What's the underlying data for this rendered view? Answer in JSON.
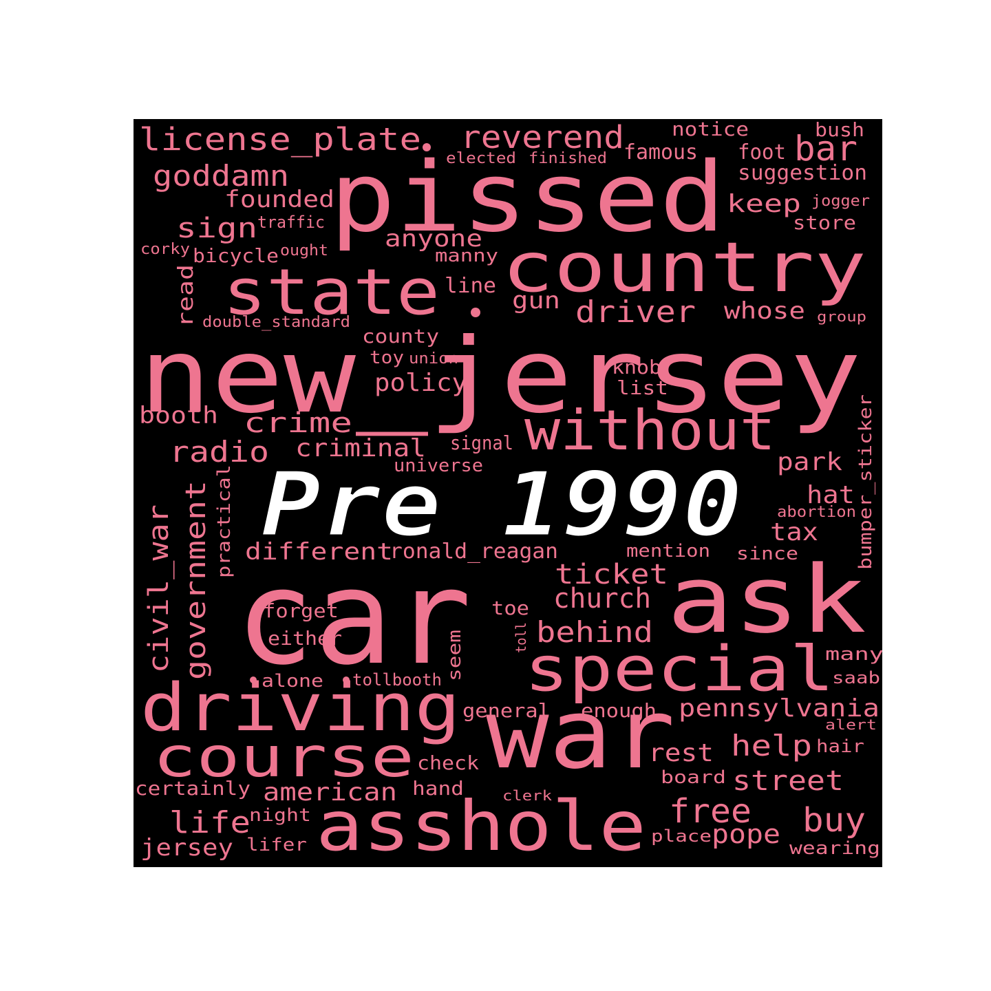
{
  "colors": {
    "background": "#000000",
    "words": "#ee7590",
    "title": "#ffffff",
    "page": "#ffffff"
  },
  "overlay_title": "Pre 1990",
  "words": [
    "car",
    "new_jersey",
    "pissed",
    "country",
    "state",
    "ask",
    "war",
    "special",
    "asshole",
    "driving",
    "course",
    "without",
    "license_plate",
    "reverend",
    "goddamn",
    "bar",
    "driver",
    "church",
    "ticket",
    "behind",
    "government",
    "civil_war",
    "crime",
    "radio",
    "criminal",
    "policy",
    "american",
    "street",
    "pennsylvania",
    "free",
    "help",
    "buy",
    "pope",
    "rest",
    "different",
    "ronald_reagan",
    "life",
    "jersey",
    "founded",
    "sign",
    "anyone",
    "keep",
    "gun",
    "whose",
    "line",
    "county",
    "park",
    "hat",
    "tax",
    "booth",
    "famous",
    "notice",
    "foot",
    "bush",
    "suggestion",
    "store",
    "jogger",
    "manny",
    "bicycle",
    "corky",
    "ought",
    "traffic",
    "read",
    "double_standard",
    "toy",
    "union",
    "knob",
    "list",
    "signal",
    "universe",
    "practical",
    "bumper_sticker",
    "abortion",
    "mention",
    "since",
    "forget",
    "either",
    "toe",
    "toll",
    "seem",
    "alone",
    "tollbooth",
    "general",
    "enough",
    "many",
    "saab",
    "alert",
    "hair",
    "check",
    "hand",
    "certainly",
    "board",
    "clerk",
    "night",
    "lifer",
    "place",
    "wearing",
    "elected",
    "finished",
    "group"
  ]
}
